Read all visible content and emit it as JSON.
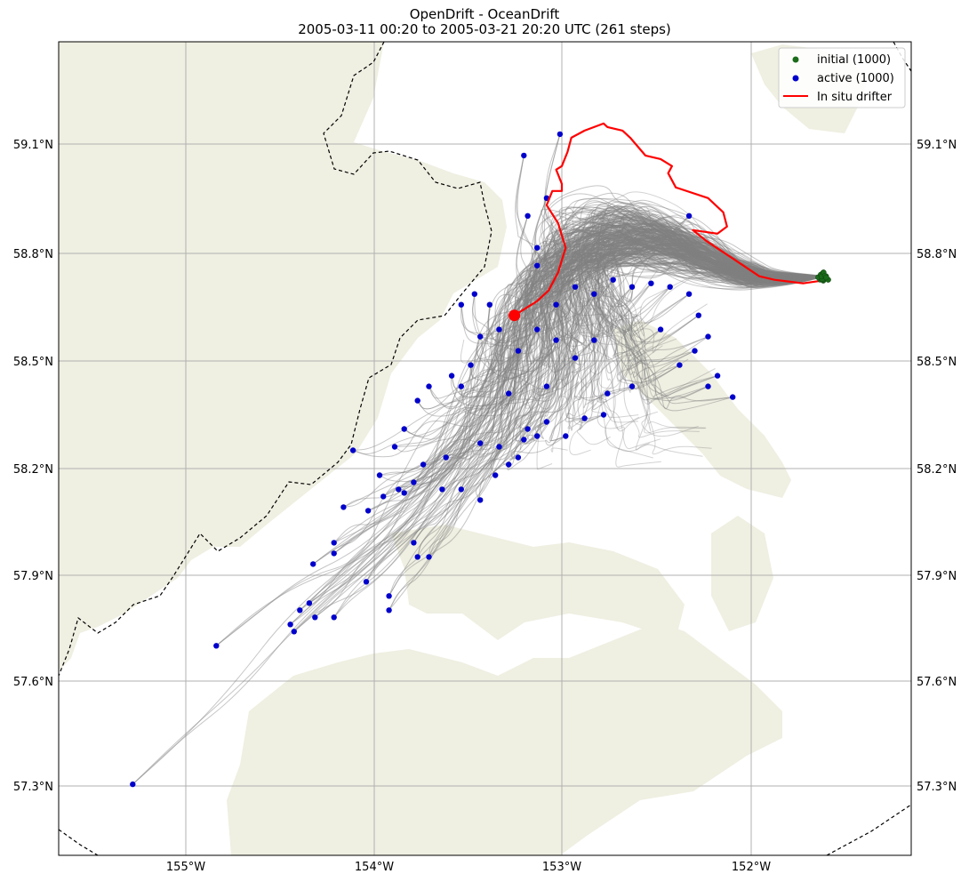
{
  "title_line1": "OpenDrift - OceanDrift",
  "title_line2": "2005-03-11 00:20 to 2005-03-21 20:20 UTC (261 steps)",
  "colors": {
    "land": "#EFEFE2",
    "ocean": "#FFFFFF",
    "grid": "#B0B0B0",
    "trajectory": "#808080",
    "initial": "#1A6B1A",
    "active": "#0000CC",
    "drifter": "#FF0000",
    "coastline_dashed": "#000000"
  },
  "legend": {
    "initial_label": "initial (1000)",
    "active_label": "active (1000)",
    "drifter_label": "In situ drifter"
  },
  "axes": {
    "lon_ticks": [
      "155°W",
      "154°W",
      "153°W",
      "152°W"
    ],
    "lat_ticks": [
      "59.1°N",
      "58.8°N",
      "58.5°N",
      "58.2°N",
      "57.9°N",
      "57.6°N",
      "57.3°N"
    ]
  },
  "map_data": {
    "type": "scatter",
    "xlim": [
      -155.67,
      -151.18
    ],
    "ylim": [
      57.1,
      59.39
    ],
    "xlabel": "",
    "ylabel": "",
    "drifter": {
      "start": [
        -153.27,
        58.62
      ],
      "path": [
        [
          -151.62,
          58.72
        ],
        [
          -151.75,
          58.71
        ],
        [
          -151.9,
          58.72
        ],
        [
          -151.98,
          58.73
        ],
        [
          -152.12,
          58.78
        ],
        [
          -152.26,
          58.83
        ],
        [
          -152.33,
          58.86
        ],
        [
          -152.2,
          58.85
        ],
        [
          -152.15,
          58.87
        ],
        [
          -152.17,
          58.91
        ],
        [
          -152.25,
          58.95
        ],
        [
          -152.42,
          58.98
        ],
        [
          -152.46,
          59.02
        ],
        [
          -152.44,
          59.04
        ],
        [
          -152.5,
          59.06
        ],
        [
          -152.58,
          59.07
        ],
        [
          -152.66,
          59.12
        ],
        [
          -152.7,
          59.14
        ],
        [
          -152.78,
          59.15
        ],
        [
          -152.8,
          59.16
        ],
        [
          -152.9,
          59.14
        ],
        [
          -152.97,
          59.12
        ],
        [
          -152.99,
          59.08
        ],
        [
          -153.02,
          59.04
        ],
        [
          -153.05,
          59.03
        ],
        [
          -153.02,
          58.99
        ],
        [
          -153.02,
          58.97
        ],
        [
          -153.07,
          58.97
        ],
        [
          -153.1,
          58.93
        ],
        [
          -153.04,
          58.88
        ],
        [
          -153.0,
          58.81
        ],
        [
          -153.04,
          58.74
        ],
        [
          -153.09,
          58.69
        ],
        [
          -153.15,
          58.66
        ],
        [
          -153.27,
          58.62
        ]
      ]
    },
    "initial_position": [
      -151.64,
      58.73
    ],
    "active_particles": [
      [
        -155.28,
        57.3
      ],
      [
        -154.84,
        57.69
      ],
      [
        -154.45,
        57.75
      ],
      [
        -154.43,
        57.73
      ],
      [
        -154.32,
        57.77
      ],
      [
        -154.22,
        57.77
      ],
      [
        -154.4,
        57.79
      ],
      [
        -154.35,
        57.81
      ],
      [
        -154.33,
        57.92
      ],
      [
        -154.22,
        57.95
      ],
      [
        -154.22,
        57.98
      ],
      [
        -154.05,
        57.87
      ],
      [
        -153.93,
        57.79
      ],
      [
        -153.93,
        57.83
      ],
      [
        -153.78,
        57.94
      ],
      [
        -153.72,
        57.94
      ],
      [
        -153.8,
        57.98
      ],
      [
        -154.17,
        58.08
      ],
      [
        -154.04,
        58.07
      ],
      [
        -153.96,
        58.11
      ],
      [
        -153.88,
        58.13
      ],
      [
        -153.85,
        58.12
      ],
      [
        -153.8,
        58.15
      ],
      [
        -153.75,
        58.2
      ],
      [
        -153.65,
        58.13
      ],
      [
        -153.55,
        58.13
      ],
      [
        -153.45,
        58.1
      ],
      [
        -153.37,
        58.17
      ],
      [
        -153.35,
        58.25
      ],
      [
        -153.3,
        58.2
      ],
      [
        -153.25,
        58.22
      ],
      [
        -153.22,
        58.27
      ],
      [
        -153.2,
        58.3
      ],
      [
        -153.15,
        58.28
      ],
      [
        -153.1,
        58.32
      ],
      [
        -153.0,
        58.28
      ],
      [
        -152.9,
        58.33
      ],
      [
        -152.8,
        58.34
      ],
      [
        -153.9,
        58.25
      ],
      [
        -153.85,
        58.3
      ],
      [
        -153.78,
        58.38
      ],
      [
        -153.72,
        58.42
      ],
      [
        -153.6,
        58.45
      ],
      [
        -153.5,
        58.48
      ],
      [
        -153.45,
        58.56
      ],
      [
        -153.35,
        58.58
      ],
      [
        -153.25,
        58.52
      ],
      [
        -153.15,
        58.58
      ],
      [
        -153.05,
        58.55
      ],
      [
        -152.95,
        58.5
      ],
      [
        -152.85,
        58.55
      ],
      [
        -153.05,
        58.65
      ],
      [
        -152.95,
        58.7
      ],
      [
        -152.85,
        58.68
      ],
      [
        -152.75,
        58.72
      ],
      [
        -152.65,
        58.7
      ],
      [
        -152.55,
        58.71
      ],
      [
        -152.45,
        58.7
      ],
      [
        -152.35,
        58.68
      ],
      [
        -152.3,
        58.62
      ],
      [
        -152.25,
        58.56
      ],
      [
        -152.32,
        58.52
      ],
      [
        -152.4,
        58.48
      ],
      [
        -152.2,
        58.45
      ],
      [
        -152.25,
        58.42
      ],
      [
        -152.12,
        58.39
      ],
      [
        -152.5,
        58.58
      ],
      [
        -153.15,
        58.76
      ],
      [
        -153.15,
        58.81
      ],
      [
        -153.2,
        58.9
      ],
      [
        -153.1,
        58.95
      ],
      [
        -153.22,
        59.07
      ],
      [
        -153.03,
        59.13
      ],
      [
        -153.55,
        58.65
      ],
      [
        -152.35,
        58.9
      ],
      [
        -152.65,
        58.42
      ],
      [
        -152.78,
        58.4
      ],
      [
        -153.1,
        58.42
      ],
      [
        -153.3,
        58.4
      ],
      [
        -153.55,
        58.42
      ],
      [
        -154.12,
        58.24
      ],
      [
        -153.98,
        58.17
      ],
      [
        -153.63,
        58.22
      ],
      [
        -153.45,
        58.26
      ],
      [
        -153.4,
        58.65
      ],
      [
        -153.48,
        58.68
      ]
    ]
  }
}
